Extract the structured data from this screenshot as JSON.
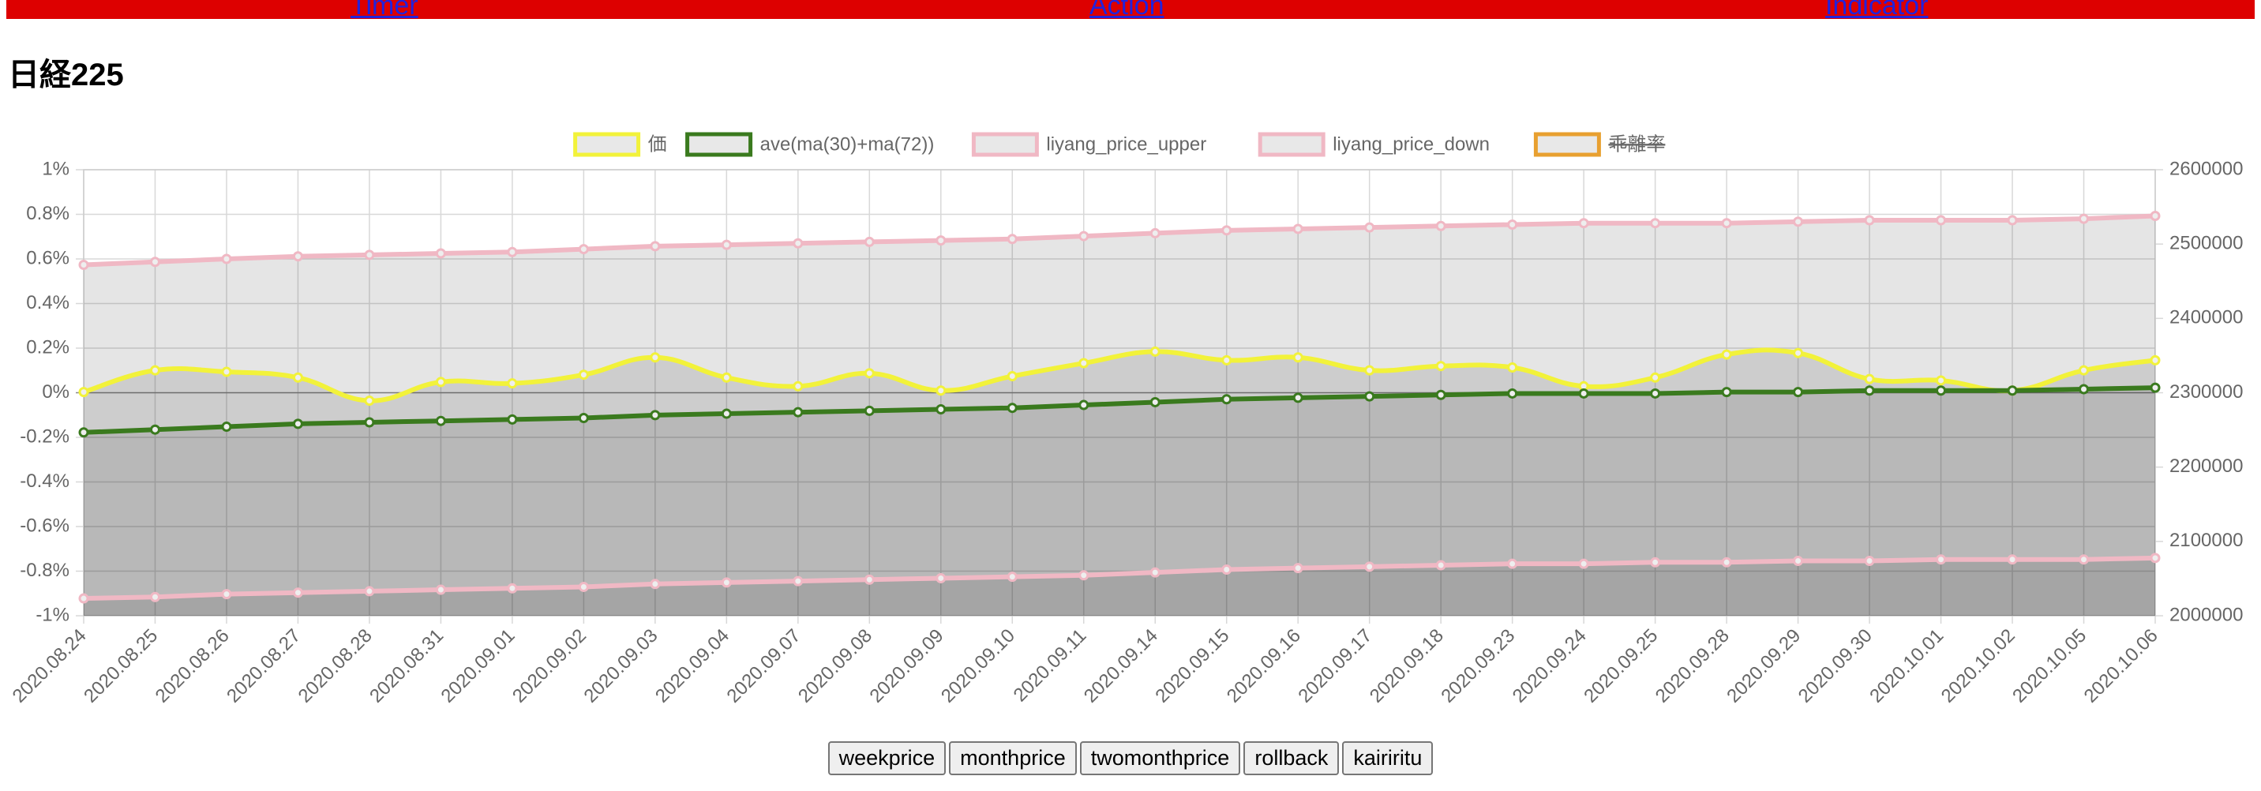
{
  "nav": [
    "Timer",
    "Action",
    "Indicator"
  ],
  "heading": "日経225",
  "chart_data": {
    "type": "line",
    "categories": [
      "2020.08.24",
      "2020.08.25",
      "2020.08.26",
      "2020.08.27",
      "2020.08.28",
      "2020.08.31",
      "2020.09.01",
      "2020.09.02",
      "2020.09.03",
      "2020.09.04",
      "2020.09.07",
      "2020.09.08",
      "2020.09.09",
      "2020.09.10",
      "2020.09.11",
      "2020.09.14",
      "2020.09.15",
      "2020.09.16",
      "2020.09.17",
      "2020.09.18",
      "2020.09.23",
      "2020.09.24",
      "2020.09.25",
      "2020.09.28",
      "2020.09.29",
      "2020.09.30",
      "2020.10.01",
      "2020.10.02",
      "2020.10.05",
      "2020.10.06"
    ],
    "ylim": [
      -1,
      1
    ],
    "yticks": [
      {
        "value": 1,
        "label": "1%"
      },
      {
        "value": 0.8,
        "label": "0.8%"
      },
      {
        "value": 0.6,
        "label": "0.6%"
      },
      {
        "value": 0.4,
        "label": "0.4%"
      },
      {
        "value": 0.2,
        "label": "0.2%"
      },
      {
        "value": 0,
        "label": "0%"
      },
      {
        "value": -0.2,
        "label": "-0.2%"
      },
      {
        "value": -0.4,
        "label": "-0.4%"
      },
      {
        "value": -0.6,
        "label": "-0.6%"
      },
      {
        "value": -0.8,
        "label": "-0.8%"
      },
      {
        "value": -1,
        "label": "-1%"
      }
    ],
    "y2lim": [
      2000000,
      2600000
    ],
    "y2ticks": [
      2600000,
      2500000,
      2400000,
      2300000,
      2200000,
      2100000,
      2000000
    ],
    "grid": true,
    "legend": "top",
    "series": [
      {
        "name": "価",
        "color": "#f2f23a",
        "axis": "y2",
        "smooth": true,
        "values": [
          2300900,
          2330100,
          2328100,
          2320400,
          2289300,
          2314500,
          2312600,
          2324200,
          2347500,
          2320400,
          2308700,
          2326200,
          2302900,
          2322300,
          2339800,
          2355300,
          2343700,
          2347500,
          2330100,
          2335900,
          2334000,
          2308700,
          2320400,
          2351400,
          2353400,
          2318400,
          2316500,
          2302900,
          2330100,
          2343700
        ]
      },
      {
        "name": "ave(ma(30)+ma(72))",
        "color": "#3a7a1e",
        "axis": "y2",
        "values": [
          2246600,
          2250400,
          2254300,
          2258200,
          2260200,
          2262100,
          2264000,
          2266000,
          2269900,
          2271800,
          2273800,
          2275700,
          2277700,
          2279600,
          2283500,
          2287300,
          2291200,
          2293200,
          2295100,
          2297100,
          2299000,
          2299000,
          2299000,
          2300900,
          2300900,
          2302900,
          2302900,
          2302900,
          2304800,
          2306800
        ]
      },
      {
        "name": "liyang_price_upper",
        "color": "#f0b8c4",
        "axis": "y2",
        "values": [
          2472000,
          2476000,
          2480000,
          2483500,
          2485400,
          2487400,
          2489300,
          2493200,
          2497100,
          2499000,
          2501000,
          2502900,
          2504800,
          2506800,
          2510700,
          2514600,
          2518400,
          2520400,
          2522300,
          2524300,
          2526200,
          2528100,
          2528100,
          2528100,
          2530100,
          2532000,
          2532000,
          2532000,
          2534000,
          2537900
        ]
      },
      {
        "name": "liyang_price_down",
        "color": "#f0b8c4",
        "axis": "y2",
        "values": [
          2023300,
          2025200,
          2029100,
          2031100,
          2033000,
          2035000,
          2036900,
          2038800,
          2042700,
          2044700,
          2046600,
          2048600,
          2050500,
          2052400,
          2054400,
          2058300,
          2062100,
          2064100,
          2066000,
          2068000,
          2069900,
          2069900,
          2071900,
          2071900,
          2073800,
          2073800,
          2075700,
          2075700,
          2075700,
          2077700
        ]
      },
      {
        "name": "乖離率",
        "color": "#e8a030",
        "hidden": true
      }
    ]
  },
  "buttons": [
    "weekprice",
    "monthprice",
    "twomonthprice",
    "rollback",
    "kairiritu"
  ]
}
